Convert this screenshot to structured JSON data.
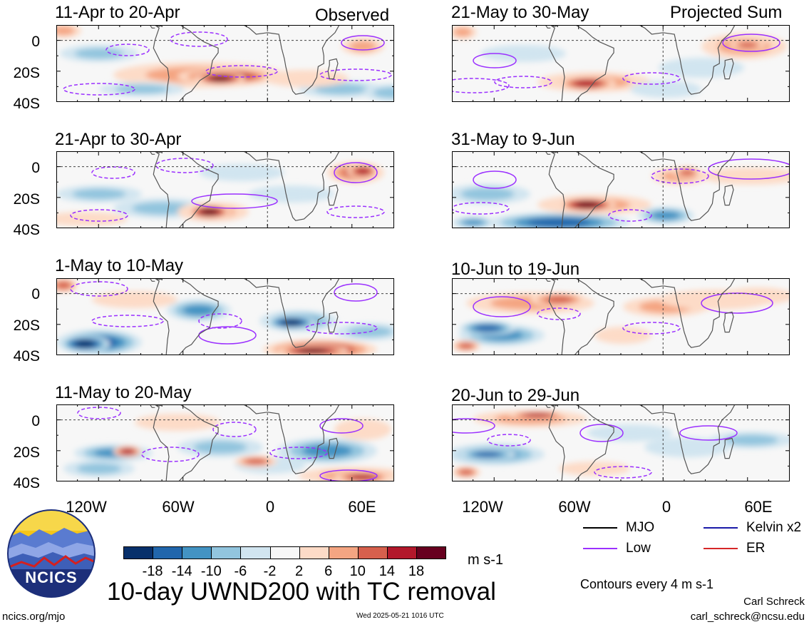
{
  "header": {
    "left_tag": "Observed",
    "right_tag": "Projected Sum"
  },
  "panels": {
    "observed": [
      "11-Apr to 20-Apr",
      "21-Apr to 30-Apr",
      "1-May to 10-May",
      "11-May to 20-May"
    ],
    "projected": [
      "21-May to 30-May",
      "31-May to 9-Jun",
      "10-Jun to 19-Jun",
      "20-Jun to 29-Jun"
    ]
  },
  "axes": {
    "y_ticks": [
      "0",
      "20S",
      "40S"
    ],
    "x_ticks": [
      "120W",
      "60W",
      "0",
      "60E"
    ]
  },
  "colorbar": {
    "colors": [
      "#08306b",
      "#2166ac",
      "#4393c3",
      "#92c5de",
      "#d1e5f0",
      "#f7f7f7",
      "#fddbc7",
      "#f4a582",
      "#d6604d",
      "#b2182b",
      "#67001f"
    ],
    "labels": [
      "-18",
      "-14",
      "-10",
      "-6",
      "-2",
      "2",
      "6",
      "10",
      "14",
      "18"
    ],
    "units": "m s-1"
  },
  "legend": {
    "items": [
      {
        "label": "MJO",
        "color": "#000000"
      },
      {
        "label": "Kelvin x2",
        "color": "#1a1aa8"
      },
      {
        "label": "Low",
        "color": "#9b30ff"
      },
      {
        "label": "ER",
        "color": "#d62728"
      }
    ],
    "contour_note": "Contours every 4 m s-1"
  },
  "footer": {
    "main_title": "10-day UWND200 with TC removal",
    "site": "ncics.org/mjo",
    "timestamp": "Wed 2025-05-21 1016 UTC",
    "author": "Carl Schreck",
    "email": "carl_schreck@ncsu.edu",
    "logo_text": "NCICS"
  },
  "chart_data": [
    {
      "type": "heatmap",
      "title": "11-Apr to 20-Apr",
      "subtitle": "Observed",
      "xlabel": "",
      "ylabel": "",
      "x_ticks": [
        "120W",
        "60W",
        "0",
        "60E"
      ],
      "y_ticks": [
        "0",
        "20S",
        "40S"
      ],
      "units": "m s-1",
      "value_range": [
        -18,
        18
      ]
    },
    {
      "type": "heatmap",
      "title": "21-Apr to 30-Apr",
      "xlabel": "",
      "ylabel": "",
      "x_ticks": [
        "120W",
        "60W",
        "0",
        "60E"
      ],
      "y_ticks": [
        "0",
        "20S",
        "40S"
      ],
      "units": "m s-1",
      "value_range": [
        -18,
        18
      ]
    },
    {
      "type": "heatmap",
      "title": "1-May to 10-May",
      "xlabel": "",
      "ylabel": "",
      "x_ticks": [
        "120W",
        "60W",
        "0",
        "60E"
      ],
      "y_ticks": [
        "0",
        "20S",
        "40S"
      ],
      "units": "m s-1",
      "value_range": [
        -18,
        18
      ]
    },
    {
      "type": "heatmap",
      "title": "11-May to 20-May",
      "xlabel": "",
      "ylabel": "",
      "x_ticks": [
        "120W",
        "60W",
        "0",
        "60E"
      ],
      "y_ticks": [
        "0",
        "20S",
        "40S"
      ],
      "units": "m s-1",
      "value_range": [
        -18,
        18
      ]
    },
    {
      "type": "heatmap",
      "title": "21-May to 30-May",
      "subtitle": "Projected Sum",
      "xlabel": "",
      "ylabel": "",
      "x_ticks": [
        "120W",
        "60W",
        "0",
        "60E"
      ],
      "y_ticks": [
        "0",
        "20S",
        "40S"
      ],
      "units": "m s-1",
      "value_range": [
        -18,
        18
      ]
    },
    {
      "type": "heatmap",
      "title": "31-May to 9-Jun",
      "xlabel": "",
      "ylabel": "",
      "x_ticks": [
        "120W",
        "60W",
        "0",
        "60E"
      ],
      "y_ticks": [
        "0",
        "20S",
        "40S"
      ],
      "units": "m s-1",
      "value_range": [
        -18,
        18
      ]
    },
    {
      "type": "heatmap",
      "title": "10-Jun to 19-Jun",
      "xlabel": "",
      "ylabel": "",
      "x_ticks": [
        "120W",
        "60W",
        "0",
        "60E"
      ],
      "y_ticks": [
        "0",
        "20S",
        "40S"
      ],
      "units": "m s-1",
      "value_range": [
        -18,
        18
      ]
    },
    {
      "type": "heatmap",
      "title": "20-Jun to 29-Jun",
      "xlabel": "",
      "ylabel": "",
      "x_ticks": [
        "120W",
        "60W",
        "0",
        "60E"
      ],
      "y_ticks": [
        "0",
        "20S",
        "40S"
      ],
      "units": "m s-1",
      "value_range": [
        -18,
        18
      ]
    }
  ]
}
